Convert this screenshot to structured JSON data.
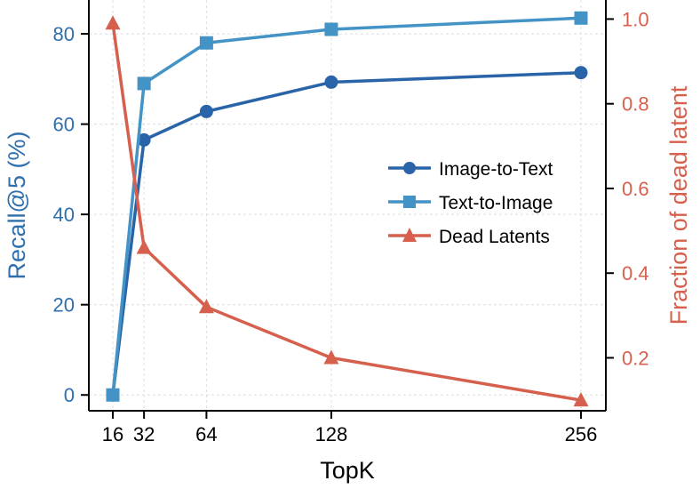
{
  "chart_data": {
    "type": "line",
    "xlabel": "TopK",
    "ylabel_left": "Recall@5 (%)",
    "ylabel_right": "Fraction of dead latent",
    "x": [
      16,
      32,
      64,
      128,
      256
    ],
    "x_tick_labels": [
      "16",
      "32",
      "64",
      "128",
      "256"
    ],
    "y_left_ticks": [
      0,
      20,
      40,
      60,
      80
    ],
    "y_left_lim": [
      -3.5,
      87.5
    ],
    "y_right_ticks": [
      0.2,
      0.4,
      0.6,
      0.8,
      1.0
    ],
    "y_right_lim": [
      0.075,
      1.045
    ],
    "grid": true,
    "legend_position": "center-right",
    "series": [
      {
        "name": "Image-to-Text",
        "axis": "left",
        "marker": "circle",
        "color": "#2a64a8",
        "values": [
          0,
          56.5,
          62.8,
          69.3,
          71.4
        ]
      },
      {
        "name": "Text-to-Image",
        "axis": "left",
        "marker": "square",
        "color": "#4493c6",
        "values": [
          0,
          69.0,
          78.0,
          81.0,
          83.5
        ]
      },
      {
        "name": "Dead Latents",
        "axis": "right",
        "marker": "triangle",
        "color": "#d6604d",
        "values": [
          0.99,
          0.46,
          0.32,
          0.2,
          0.1
        ]
      }
    ],
    "colors": {
      "left_axis": "#2f6fad",
      "right_axis": "#d6604d",
      "grid": "#dddddd"
    }
  }
}
